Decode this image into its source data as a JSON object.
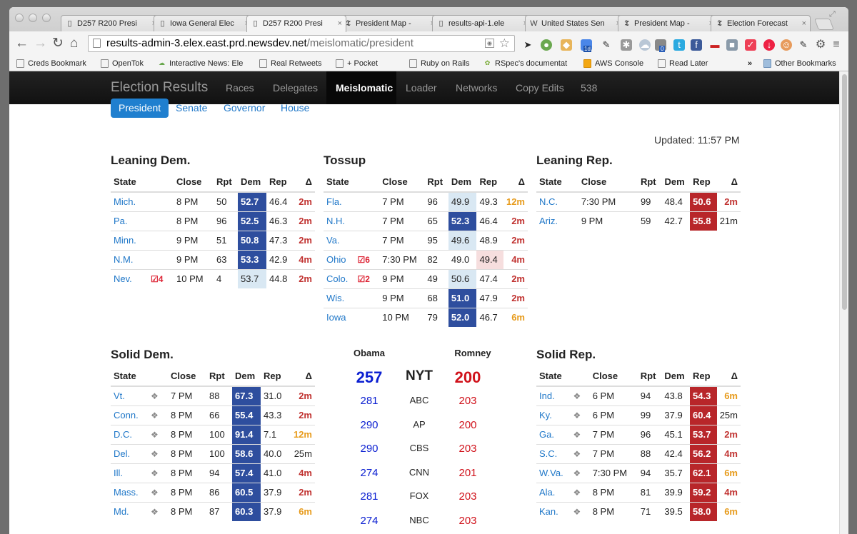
{
  "browser": {
    "tabs": [
      {
        "title": "D257 R200 Presi",
        "icon": "page-icon",
        "active": false
      },
      {
        "title": "Iowa General Elec",
        "icon": "page-icon",
        "active": false
      },
      {
        "title": "D257 R200 Presi",
        "icon": "page-icon",
        "active": true
      },
      {
        "title": "President Map - ",
        "icon": "nyt-icon",
        "active": false
      },
      {
        "title": "results-api-1.ele",
        "icon": "page-icon",
        "active": false
      },
      {
        "title": "United States Sen",
        "icon": "wikipedia-icon",
        "active": false
      },
      {
        "title": "President Map - ",
        "icon": "nyt-icon",
        "active": false
      },
      {
        "title": "Election Forecast",
        "icon": "nyt-icon",
        "active": false
      }
    ],
    "url_host": "results-admin-3.elex.east.prd.newsdev.net",
    "url_path": "/meislomatic/president",
    "bookmarks": [
      {
        "label": "Creds Bookmark"
      },
      {
        "label": "OpenTok"
      },
      {
        "label": "Interactive News: Ele"
      },
      {
        "label": "Real Retweets"
      },
      {
        "label": "+ Pocket"
      },
      {
        "label": "Ruby on Rails"
      },
      {
        "label": "RSpec's documentat"
      },
      {
        "label": "AWS Console"
      },
      {
        "label": "Read Later"
      },
      {
        "label": "Other Bookmarks"
      }
    ],
    "extension_badges": {
      "calendar": "1d",
      "counter": "0"
    }
  },
  "navbar": {
    "brand": "Election Results",
    "links": [
      "Races",
      "Delegates",
      "Meislomatic",
      "Loader",
      "Networks",
      "Copy Edits",
      "538"
    ],
    "active": "Meislomatic"
  },
  "pills": [
    "President",
    "Senate",
    "Governor",
    "House"
  ],
  "active_pill": "President",
  "updated": "Updated: 11:57 PM",
  "headers": {
    "state": "State",
    "close": "Close",
    "rpt": "Rpt",
    "dem": "Dem",
    "rep": "Rep",
    "delta": "Δ"
  },
  "sections": {
    "leaning_dem": {
      "title": "Leaning Dem.",
      "rows": [
        {
          "state": "Mich.",
          "flag": "",
          "close": "8 PM",
          "rpt": "50",
          "dem": "52.7",
          "rep": "46.4",
          "delta": "2m",
          "dem_style": "sd",
          "rep_style": "",
          "delta_style": "dr"
        },
        {
          "state": "Pa.",
          "flag": "",
          "close": "8 PM",
          "rpt": "96",
          "dem": "52.5",
          "rep": "46.3",
          "delta": "2m",
          "dem_style": "sd",
          "rep_style": "",
          "delta_style": "dr"
        },
        {
          "state": "Minn.",
          "flag": "",
          "close": "9 PM",
          "rpt": "51",
          "dem": "50.8",
          "rep": "47.3",
          "delta": "2m",
          "dem_style": "sd",
          "rep_style": "",
          "delta_style": "dr"
        },
        {
          "state": "N.M.",
          "flag": "",
          "close": "9 PM",
          "rpt": "63",
          "dem": "53.3",
          "rep": "42.9",
          "delta": "4m",
          "dem_style": "sd",
          "rep_style": "",
          "delta_style": "dr"
        },
        {
          "state": "Nev.",
          "flag": "4",
          "close": "10 PM",
          "rpt": "4",
          "dem": "53.7",
          "rep": "44.8",
          "delta": "2m",
          "dem_style": "ld",
          "rep_style": "",
          "delta_style": "dr"
        }
      ]
    },
    "tossup": {
      "title": "Tossup",
      "rows": [
        {
          "state": "Fla.",
          "flag": "",
          "close": "7 PM",
          "rpt": "96",
          "dem": "49.9",
          "rep": "49.3",
          "delta": "12m",
          "dem_style": "ld",
          "rep_style": "",
          "delta_style": "do"
        },
        {
          "state": "N.H.",
          "flag": "",
          "close": "7 PM",
          "rpt": "65",
          "dem": "52.3",
          "rep": "46.4",
          "delta": "2m",
          "dem_style": "sd",
          "rep_style": "",
          "delta_style": "dr"
        },
        {
          "state": "Va.",
          "flag": "",
          "close": "7 PM",
          "rpt": "95",
          "dem": "49.6",
          "rep": "48.9",
          "delta": "2m",
          "dem_style": "ld",
          "rep_style": "",
          "delta_style": "dr"
        },
        {
          "state": "Ohio",
          "flag": "6",
          "close": "7:30 PM",
          "rpt": "82",
          "dem": "49.0",
          "rep": "49.4",
          "delta": "4m",
          "dem_style": "",
          "rep_style": "lr",
          "delta_style": "dr"
        },
        {
          "state": "Colo.",
          "flag": "2",
          "close": "9 PM",
          "rpt": "49",
          "dem": "50.6",
          "rep": "47.4",
          "delta": "2m",
          "dem_style": "ld",
          "rep_style": "",
          "delta_style": "dr"
        },
        {
          "state": "Wis.",
          "flag": "",
          "close": "9 PM",
          "rpt": "68",
          "dem": "51.0",
          "rep": "47.9",
          "delta": "2m",
          "dem_style": "sd",
          "rep_style": "",
          "delta_style": "dr"
        },
        {
          "state": "Iowa",
          "flag": "",
          "close": "10 PM",
          "rpt": "79",
          "dem": "52.0",
          "rep": "46.7",
          "delta": "6m",
          "dem_style": "sd",
          "rep_style": "",
          "delta_style": "do"
        }
      ]
    },
    "leaning_rep": {
      "title": "Leaning Rep.",
      "rows": [
        {
          "state": "N.C.",
          "flag": "",
          "close": "7:30 PM",
          "rpt": "99",
          "dem": "48.4",
          "rep": "50.6",
          "delta": "2m",
          "dem_style": "",
          "rep_style": "sr",
          "delta_style": "dr"
        },
        {
          "state": "Ariz.",
          "flag": "",
          "close": "9 PM",
          "rpt": "59",
          "dem": "42.7",
          "rep": "55.8",
          "delta": "21m",
          "dem_style": "",
          "rep_style": "sr",
          "delta_style": "dn"
        }
      ]
    },
    "solid_dem": {
      "title": "Solid Dem.",
      "rows": [
        {
          "state": "Vt.",
          "close": "7 PM",
          "rpt": "88",
          "dem": "67.3",
          "rep": "31.0",
          "delta": "2m",
          "dem_style": "sd",
          "rep_style": "",
          "delta_style": "dr"
        },
        {
          "state": "Conn.",
          "close": "8 PM",
          "rpt": "66",
          "dem": "55.4",
          "rep": "43.3",
          "delta": "2m",
          "dem_style": "sd",
          "rep_style": "",
          "delta_style": "dr"
        },
        {
          "state": "D.C.",
          "close": "8 PM",
          "rpt": "100",
          "dem": "91.4",
          "rep": "7.1",
          "delta": "12m",
          "dem_style": "sd",
          "rep_style": "",
          "delta_style": "do"
        },
        {
          "state": "Del.",
          "close": "8 PM",
          "rpt": "100",
          "dem": "58.6",
          "rep": "40.0",
          "delta": "25m",
          "dem_style": "sd",
          "rep_style": "",
          "delta_style": "dn"
        },
        {
          "state": "Ill.",
          "close": "8 PM",
          "rpt": "94",
          "dem": "57.4",
          "rep": "41.0",
          "delta": "4m",
          "dem_style": "sd",
          "rep_style": "",
          "delta_style": "dr"
        },
        {
          "state": "Mass.",
          "close": "8 PM",
          "rpt": "86",
          "dem": "60.5",
          "rep": "37.9",
          "delta": "2m",
          "dem_style": "sd",
          "rep_style": "",
          "delta_style": "dr"
        },
        {
          "state": "Md.",
          "close": "8 PM",
          "rpt": "87",
          "dem": "60.3",
          "rep": "37.9",
          "delta": "6m",
          "dem_style": "sd",
          "rep_style": "",
          "delta_style": "do"
        }
      ]
    },
    "solid_rep": {
      "title": "Solid Rep.",
      "rows": [
        {
          "state": "Ind.",
          "close": "6 PM",
          "rpt": "94",
          "dem": "43.8",
          "rep": "54.3",
          "delta": "6m",
          "dem_style": "",
          "rep_style": "sr",
          "delta_style": "do"
        },
        {
          "state": "Ky.",
          "close": "6 PM",
          "rpt": "99",
          "dem": "37.9",
          "rep": "60.4",
          "delta": "25m",
          "dem_style": "",
          "rep_style": "sr",
          "delta_style": "dn"
        },
        {
          "state": "Ga.",
          "close": "7 PM",
          "rpt": "96",
          "dem": "45.1",
          "rep": "53.7",
          "delta": "2m",
          "dem_style": "",
          "rep_style": "sr",
          "delta_style": "dr"
        },
        {
          "state": "S.C.",
          "close": "7 PM",
          "rpt": "88",
          "dem": "42.4",
          "rep": "56.2",
          "delta": "4m",
          "dem_style": "",
          "rep_style": "sr",
          "delta_style": "dr"
        },
        {
          "state": "W.Va.",
          "close": "7:30 PM",
          "rpt": "94",
          "dem": "35.7",
          "rep": "62.1",
          "delta": "6m",
          "dem_style": "",
          "rep_style": "sr",
          "delta_style": "do"
        },
        {
          "state": "Ala.",
          "close": "8 PM",
          "rpt": "81",
          "dem": "39.9",
          "rep": "59.2",
          "delta": "4m",
          "dem_style": "",
          "rep_style": "sr",
          "delta_style": "dr"
        },
        {
          "state": "Kan.",
          "close": "8 PM",
          "rpt": "71",
          "dem": "39.5",
          "rep": "58.0",
          "delta": "6m",
          "dem_style": "",
          "rep_style": "sr",
          "delta_style": "do"
        }
      ]
    }
  },
  "electoral": {
    "obama_label": "Obama",
    "romney_label": "Romney",
    "rows": [
      {
        "source": "NYT",
        "obama": "257",
        "romney": "200"
      },
      {
        "source": "ABC",
        "obama": "281",
        "romney": "203"
      },
      {
        "source": "AP",
        "obama": "290",
        "romney": "200"
      },
      {
        "source": "CBS",
        "obama": "290",
        "romney": "203"
      },
      {
        "source": "CNN",
        "obama": "274",
        "romney": "201"
      },
      {
        "source": "FOX",
        "obama": "281",
        "romney": "203"
      },
      {
        "source": "NBC",
        "obama": "274",
        "romney": "203"
      }
    ]
  },
  "colors": {
    "solid_dem": "#2e4e9e",
    "lean_dem": "#d9e8f3",
    "solid_rep": "#b8262a",
    "lean_rep": "#f6dede",
    "link": "#1f77c8",
    "delta_red": "#c0312f",
    "delta_orange": "#e79b1c"
  }
}
